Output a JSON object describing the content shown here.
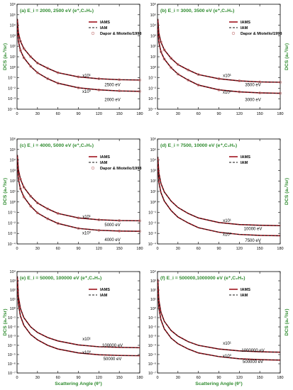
{
  "figure": {
    "ylabel": "DCS (a₀²/sr)",
    "xlabel": "Scattering Angle (θ°)",
    "colors": {
      "axis_label": "#2e8b2e",
      "title": "#2e8b2e",
      "iams": "#a0141e",
      "iam": "#111111",
      "exp": "#c07070"
    }
  },
  "chart_data": [
    {
      "type": "line",
      "title": "(a) E_i = 2000, 2500 eV (e⁺,C₂H₆)",
      "xlabel": "",
      "ylabel": "DCS (a₀²/sr)",
      "xlim": [
        0,
        180
      ],
      "ylim_log10": [
        -4,
        6
      ],
      "yscale": "log",
      "xticks": [
        0,
        30,
        60,
        90,
        120,
        150,
        180
      ],
      "yticks": [
        "10⁻⁴",
        "10⁻³",
        "10⁻²",
        "10⁻¹",
        "10⁰",
        "10¹",
        "10²",
        "10³",
        "10⁴",
        "10⁵",
        "10⁶"
      ],
      "legend": [
        "IAMS",
        "IAM",
        "Dapor & Miotello/1998"
      ],
      "legend_position": "top-right",
      "annotations": [
        {
          "text": "x10¹",
          "x": 102,
          "y": 0.12
        },
        {
          "text": "2500 eV",
          "x": 140,
          "y": 0.016
        },
        {
          "text": "x10⁰",
          "x": 102,
          "y": 0.0035
        },
        {
          "text": "2000 eV",
          "x": 140,
          "y": 0.0006
        }
      ],
      "series": [
        {
          "name": "2500 eV",
          "x": [
            0.5,
            2,
            5,
            10,
            20,
            30,
            45,
            60,
            90,
            120,
            150,
            180
          ],
          "values": [
            40000,
            2000,
            300,
            60,
            10,
            2.5,
            0.8,
            0.3,
            0.12,
            0.08,
            0.065,
            0.06
          ]
        },
        {
          "name": "2000 eV",
          "x": [
            0.5,
            2,
            5,
            10,
            20,
            30,
            45,
            60,
            90,
            120,
            150,
            180
          ],
          "values": [
            8000,
            300,
            40,
            8,
            1.2,
            0.3,
            0.08,
            0.03,
            0.011,
            0.007,
            0.0055,
            0.005
          ]
        }
      ]
    },
    {
      "type": "line",
      "title": "(b) E_i = 3000, 3500 eV (e⁺,C₂H₆)",
      "xlabel": "",
      "ylabel": "DCS (a₀²/sr)",
      "xlim": [
        0,
        180
      ],
      "ylim_log10": [
        -4,
        6
      ],
      "yscale": "log",
      "xticks": [
        0,
        30,
        60,
        90,
        120,
        150,
        180
      ],
      "yticks": [
        "10⁻⁴",
        "10⁻³",
        "10⁻²",
        "10⁻¹",
        "10⁰",
        "10¹",
        "10²",
        "10³",
        "10⁴",
        "10⁵",
        "10⁶"
      ],
      "legend": [
        "IAMS",
        "IAM",
        "Dapor & Miotello/1998"
      ],
      "legend_position": "top-right",
      "annotations": [
        {
          "text": "x10¹",
          "x": 102,
          "y": 0.12
        },
        {
          "text": "3500 eV",
          "x": 140,
          "y": 0.016
        },
        {
          "text": "x10⁰",
          "x": 102,
          "y": 0.003
        },
        {
          "text": "3000 eV",
          "x": 140,
          "y": 0.0006
        }
      ],
      "series": [
        {
          "name": "3500 eV",
          "x": [
            0.5,
            2,
            5,
            10,
            20,
            30,
            45,
            60,
            90,
            120,
            150,
            180
          ],
          "values": [
            40000,
            1800,
            250,
            45,
            7,
            1.8,
            0.55,
            0.2,
            0.08,
            0.05,
            0.04,
            0.037
          ]
        },
        {
          "name": "3000 eV",
          "x": [
            0.5,
            2,
            5,
            10,
            20,
            30,
            45,
            60,
            90,
            120,
            150,
            180
          ],
          "values": [
            7000,
            250,
            30,
            6,
            0.9,
            0.22,
            0.06,
            0.02,
            0.007,
            0.0045,
            0.0036,
            0.0033
          ]
        }
      ]
    },
    {
      "type": "line",
      "title": "(c) E_i = 4000, 5000 eV (e⁺,C₂H₆)",
      "xlabel": "",
      "ylabel": "DCS (a₀²/sr)",
      "xlim": [
        0,
        180
      ],
      "ylim_log10": [
        -4,
        6
      ],
      "yscale": "log",
      "xticks": [
        0,
        30,
        60,
        90,
        120,
        150,
        180
      ],
      "yticks": [
        "10⁻⁴",
        "10⁻³",
        "10⁻²",
        "10⁻¹",
        "10⁰",
        "10¹",
        "10²",
        "10³",
        "10⁴",
        "10⁵",
        "10⁶"
      ],
      "legend": [
        "IAMS",
        "IAM",
        "Dapor & Miotello/1998"
      ],
      "legend_position": "top-right",
      "annotations": [
        {
          "text": "x10¹",
          "x": 102,
          "y": 0.03
        },
        {
          "text": "5000 eV",
          "x": 140,
          "y": 0.005
        },
        {
          "text": "x10⁰",
          "x": 102,
          "y": 0.0008
        },
        {
          "text": "4000 eV",
          "x": 140,
          "y": 0.00018
        }
      ],
      "series": [
        {
          "name": "5000 eV",
          "x": [
            0.5,
            2,
            5,
            10,
            20,
            30,
            45,
            60,
            90,
            120,
            150,
            180
          ],
          "values": [
            30000,
            1200,
            150,
            25,
            3.5,
            0.8,
            0.22,
            0.08,
            0.03,
            0.02,
            0.017,
            0.016
          ]
        },
        {
          "name": "4000 eV",
          "x": [
            0.5,
            2,
            5,
            10,
            20,
            30,
            45,
            60,
            90,
            120,
            150,
            180
          ],
          "values": [
            5000,
            150,
            18,
            3,
            0.4,
            0.09,
            0.025,
            0.009,
            0.003,
            0.002,
            0.0017,
            0.0016
          ]
        }
      ]
    },
    {
      "type": "line",
      "title": "(d) E_i = 7500, 10000 eV (e⁺,C₂H₆)",
      "xlabel": "",
      "ylabel": "DCS (a₀²/sr)",
      "xlim": [
        0,
        180
      ],
      "ylim_log10": [
        -4,
        6
      ],
      "yscale": "log",
      "xticks": [
        0,
        30,
        60,
        90,
        120,
        150,
        180
      ],
      "yticks": [
        "10⁻⁴",
        "10⁻³",
        "10⁻²",
        "10⁻¹",
        "10⁰",
        "10¹",
        "10²",
        "10³",
        "10⁴",
        "10⁵",
        "10⁶"
      ],
      "legend": [
        "IAMS",
        "IAM"
      ],
      "legend_position": "top-right",
      "annotations": [
        {
          "text": "x10¹",
          "x": 102,
          "y": 0.012
        },
        {
          "text": "10000 eV",
          "x": 140,
          "y": 0.002
        },
        {
          "text": "x10⁰",
          "x": 102,
          "y": 0.0006
        },
        {
          "text": "7500 eV",
          "x": 140,
          "y": 0.00016
        }
      ],
      "series": [
        {
          "name": "10000 eV",
          "x": [
            0.5,
            2,
            5,
            10,
            20,
            30,
            45,
            60,
            90,
            120,
            150,
            180
          ],
          "values": [
            20000,
            600,
            60,
            9,
            1.2,
            0.3,
            0.08,
            0.03,
            0.011,
            0.007,
            0.006,
            0.0055
          ]
        },
        {
          "name": "7500 eV",
          "x": [
            0.5,
            2,
            5,
            10,
            20,
            30,
            45,
            60,
            90,
            120,
            150,
            180
          ],
          "values": [
            3500,
            80,
            8,
            1.2,
            0.15,
            0.035,
            0.01,
            0.0035,
            0.0013,
            0.0008,
            0.00065,
            0.0006
          ]
        }
      ]
    },
    {
      "type": "line",
      "title": "(e) E_i = 50000, 100000 eV (e⁺,C₂H₆)",
      "xlabel": "Scattering Angle (θ°)",
      "ylabel": "DCS (a₀²/sr)",
      "xlim": [
        0,
        180
      ],
      "ylim_log10": [
        -7,
        4
      ],
      "yscale": "log",
      "xticks": [
        0,
        30,
        60,
        90,
        120,
        150,
        180
      ],
      "yticks": [
        "10⁻⁷",
        "10⁻⁶",
        "10⁻⁵",
        "10⁻⁴",
        "10⁻³",
        "10⁻²",
        "10⁻¹",
        "10⁰",
        "10¹",
        "10²",
        "10³",
        "10⁴"
      ],
      "legend": [
        "IAMS",
        "IAM"
      ],
      "legend_position": "top-right",
      "annotations": [
        {
          "text": "x10¹",
          "x": 102,
          "y": 0.00035
        },
        {
          "text": "100000 eV",
          "x": 140,
          "y": 7e-05
        },
        {
          "text": "x10⁰",
          "x": 102,
          "y": 1.2e-05
        },
        {
          "text": "50000 eV",
          "x": 140,
          "y": 2.5e-06
        }
      ],
      "series": [
        {
          "name": "100000 eV",
          "x": [
            0.5,
            2,
            5,
            10,
            20,
            30,
            45,
            60,
            90,
            120,
            150,
            180
          ],
          "values": [
            3000,
            20,
            1,
            0.1,
            0.01,
            0.0025,
            0.0007,
            0.0003,
            0.00011,
            7e-05,
            6e-05,
            5.5e-05
          ]
        },
        {
          "name": "50000 eV",
          "x": [
            0.5,
            2,
            5,
            10,
            20,
            30,
            45,
            60,
            90,
            120,
            150,
            180
          ],
          "values": [
            400,
            3,
            0.15,
            0.015,
            0.0015,
            0.0004,
            0.0001,
            4e-05,
            1.5e-05,
            9.5e-06,
            8e-06,
            7.5e-06
          ]
        }
      ]
    },
    {
      "type": "line",
      "title": "(f) E_i = 500000,1000000 eV (e⁺,C₂H₆)",
      "xlabel": "Scattering Angle (θ°)",
      "ylabel": "DCS (a₀²/sr)",
      "xlim": [
        0,
        180
      ],
      "ylim_log10": [
        -7,
        4
      ],
      "yscale": "log",
      "xticks": [
        0,
        30,
        60,
        90,
        120,
        150,
        180
      ],
      "yticks": [
        "10⁻⁷",
        "10⁻⁶",
        "10⁻⁵",
        "10⁻⁴",
        "10⁻³",
        "10⁻²",
        "10⁻¹",
        "10⁰",
        "10¹",
        "10²",
        "10³",
        "10⁴"
      ],
      "legend": [
        "IAMS",
        "IAM"
      ],
      "legend_position": "top-right",
      "annotations": [
        {
          "text": "x10¹",
          "x": 102,
          "y": 0.00012
        },
        {
          "text": "1000000 eV",
          "x": 140,
          "y": 2e-05
        },
        {
          "text": "x10⁰",
          "x": 102,
          "y": 5e-06
        },
        {
          "text": "500000 eV",
          "x": 140,
          "y": 1.2e-06
        }
      ],
      "series": [
        {
          "name": "1000000 eV",
          "x": [
            0.5,
            2,
            5,
            10,
            20,
            30,
            45,
            60,
            90,
            120,
            150,
            180
          ],
          "values": [
            1500,
            8,
            0.4,
            0.04,
            0.004,
            0.001,
            0.00025,
            0.0001,
            4e-05,
            2.5e-05,
            2e-05,
            1.8e-05
          ]
        },
        {
          "name": "500000 eV",
          "x": [
            0.5,
            2,
            5,
            10,
            20,
            30,
            45,
            60,
            90,
            120,
            150,
            180
          ],
          "values": [
            200,
            1.2,
            0.06,
            0.006,
            0.0006,
            0.00015,
            4e-05,
            1.5e-05,
            6e-06,
            3.5e-06,
            2.8e-06,
            2.5e-06
          ]
        }
      ]
    }
  ]
}
